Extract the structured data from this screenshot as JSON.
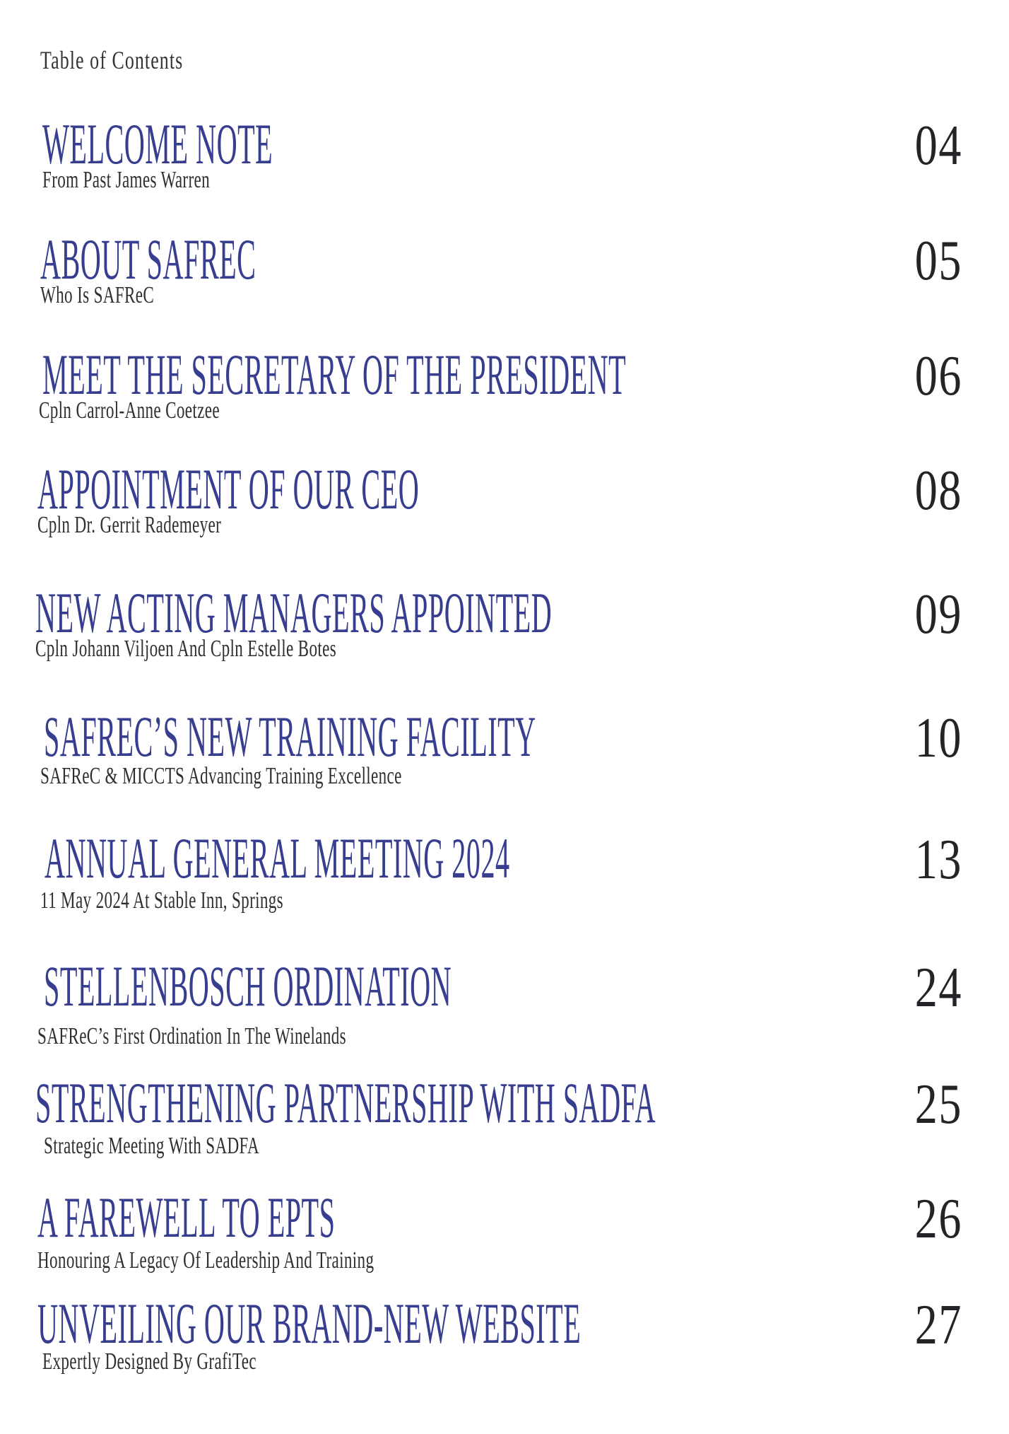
{
  "page": {
    "title": "Table of Contents"
  },
  "colors": {
    "title_blue": "#373d8f",
    "subtitle_dark": "#2f2f31",
    "page_number_dark": "#242428",
    "background": "#ffffff"
  },
  "toc": {
    "entries": [
      {
        "title": "WELCOME NOTE",
        "subtitle": "From Past James Warren",
        "page": "04"
      },
      {
        "title": "ABOUT SAFREC",
        "subtitle": "Who Is SAFReC",
        "page": "05"
      },
      {
        "title": "MEET THE SECRETARY OF THE PRESIDENT",
        "subtitle": "Cpln Carrol-Anne Coetzee",
        "page": "06"
      },
      {
        "title": "APPOINTMENT OF OUR CEO",
        "subtitle": "Cpln Dr. Gerrit Rademeyer",
        "page": "08"
      },
      {
        "title": "NEW ACTING MANAGERS APPOINTED",
        "subtitle": "Cpln Johann Viljoen And Cpln Estelle Botes",
        "page": "09"
      },
      {
        "title": "SAFREC’S NEW TRAINING FACILITY",
        "subtitle": "SAFReC & MICCTS Advancing Training Excellence",
        "page": "10"
      },
      {
        "title": "ANNUAL GENERAL MEETING 2024",
        "subtitle": "11 May 2024 At Stable Inn, Springs",
        "page": "13"
      },
      {
        "title": "STELLENBOSCH ORDINATION",
        "subtitle": "SAFReC’s First Ordination In The Winelands",
        "page": "24"
      },
      {
        "title": "STRENGTHENING PARTNERSHIP WITH SADFA",
        "subtitle": "Strategic Meeting With SADFA",
        "page": "25"
      },
      {
        "title": "A FAREWELL TO EPTS",
        "subtitle": "Honouring A Legacy Of Leadership And Training",
        "page": "26"
      },
      {
        "title": "UNVEILING OUR BRAND-NEW WEBSITE",
        "subtitle": "Expertly Designed By GrafiTec",
        "page": "27"
      }
    ]
  }
}
